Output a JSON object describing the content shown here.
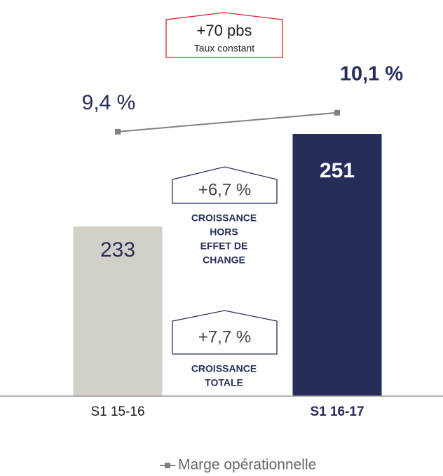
{
  "chart_data": {
    "type": "bar",
    "categories": [
      "S1 15-16",
      "S1 16-17"
    ],
    "series": [
      {
        "type": "bar",
        "values": [
          233,
          251
        ],
        "colors": [
          "#d3d0c8",
          "#262d5a"
        ]
      },
      {
        "type": "line",
        "name": "Marge opérationnelle",
        "color": "#808080",
        "axis": "y2",
        "values": [
          9.4,
          10.1
        ],
        "value_labels": [
          "9,4 %",
          "10,1 %"
        ]
      }
    ],
    "ylim": [
      200,
      260
    ],
    "y2lim": [
      8,
      11
    ],
    "annotations": [
      {
        "text": "+70 pbs",
        "subtext": "Taux constant"
      },
      {
        "text": "+6,7 %",
        "caption": [
          "CROISSANCE",
          "HORS",
          "EFFET DE",
          "CHANGE"
        ]
      },
      {
        "text": "+7,7 %",
        "caption": [
          "CROISSANCE",
          "TOTALE"
        ]
      }
    ]
  }
}
